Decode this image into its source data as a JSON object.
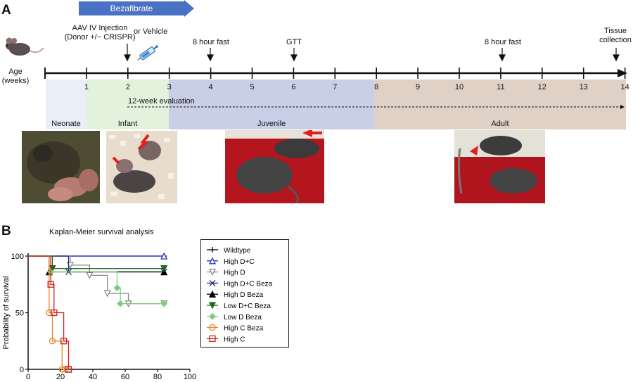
{
  "panel_a": {
    "letter": "A",
    "bezafibrate_label": "Bezafibrate",
    "injection_label": "AAV IV Injection\n(Donor +/− CRISPR)",
    "or_vehicle_label": "or  Vehicle",
    "fast1_label": "8 hour fast",
    "gtt_label": "GTT",
    "fast2_label": "8 hour fast",
    "tissue_label": "Tissue\ncollection",
    "age_label": "Age\n(weeks)",
    "weeks": [
      "1",
      "2",
      "3",
      "4",
      "5",
      "6",
      "7",
      "8",
      "9",
      "10",
      "11",
      "12",
      "13",
      "14"
    ],
    "evaluation_label": "12-week evaluation",
    "stages": [
      "Neonate",
      "Infant",
      "Juvenile",
      "Adult"
    ],
    "colors": {
      "arrow_blue": "#4a72c4",
      "neonate": "#e9eef8",
      "infant": "#e2f2dc",
      "juvenile": "#c9cfe7",
      "adult": "#dfd1c6",
      "red_arrow": "#e02020"
    }
  },
  "panel_b": {
    "letter": "B"
  },
  "chart_data": {
    "type": "line",
    "subtype": "kaplan-meier step",
    "title": "Kaplan-Meier survival analysis",
    "xlabel": "",
    "ylabel": "Probability of survival",
    "xlim": [
      0,
      100
    ],
    "ylim": [
      0,
      100
    ],
    "xticks": [
      0,
      20,
      40,
      60,
      80,
      100
    ],
    "yticks": [
      0,
      50,
      100
    ],
    "legend_position": "right",
    "series": [
      {
        "name": "Wildtype",
        "color": "#000000",
        "marker": "plus",
        "points": [
          [
            0,
            100
          ],
          [
            84,
            100
          ]
        ]
      },
      {
        "name": "High D+C",
        "color": "#2233cc",
        "marker": "triangle-open",
        "points": [
          [
            0,
            100
          ],
          [
            84,
            100
          ]
        ]
      },
      {
        "name": "High D",
        "color": "#888888",
        "marker": "triangle-down-open",
        "points": [
          [
            0,
            100
          ],
          [
            26,
            100
          ],
          [
            26,
            92
          ],
          [
            38,
            92
          ],
          [
            38,
            83
          ],
          [
            49,
            83
          ],
          [
            49,
            67
          ],
          [
            62,
            67
          ],
          [
            62,
            58
          ],
          [
            84,
            58
          ]
        ]
      },
      {
        "name": "High D+C Beza",
        "color": "#1a2a7a",
        "marker": "x",
        "points": [
          [
            0,
            100
          ],
          [
            25,
            100
          ],
          [
            25,
            86
          ],
          [
            84,
            86
          ]
        ]
      },
      {
        "name": "High D Beza",
        "color": "#000000",
        "marker": "triangle",
        "points": [
          [
            0,
            100
          ],
          [
            13,
            100
          ],
          [
            13,
            86
          ],
          [
            84,
            86
          ]
        ]
      },
      {
        "name": "Low D+C Beza",
        "color": "#226622",
        "marker": "triangle-down",
        "points": [
          [
            0,
            100
          ],
          [
            15,
            100
          ],
          [
            15,
            89
          ],
          [
            84,
            89
          ]
        ]
      },
      {
        "name": "Low D Beza",
        "color": "#7fcc7f",
        "marker": "diamond",
        "points": [
          [
            0,
            100
          ],
          [
            14,
            100
          ],
          [
            14,
            86
          ],
          [
            55,
            86
          ],
          [
            55,
            72
          ],
          [
            57,
            72
          ],
          [
            57,
            58
          ],
          [
            84,
            58
          ]
        ]
      },
      {
        "name": "High C Beza",
        "color": "#e08a2a",
        "marker": "circle-open",
        "points": [
          [
            0,
            100
          ],
          [
            13,
            100
          ],
          [
            13,
            50
          ],
          [
            15,
            50
          ],
          [
            15,
            25
          ],
          [
            21,
            25
          ],
          [
            21,
            0
          ],
          [
            23,
            0
          ]
        ]
      },
      {
        "name": "High C",
        "color": "#cc2222",
        "marker": "square-open",
        "points": [
          [
            0,
            100
          ],
          [
            14,
            100
          ],
          [
            14,
            75
          ],
          [
            16,
            75
          ],
          [
            16,
            50
          ],
          [
            22,
            50
          ],
          [
            22,
            25
          ],
          [
            25,
            25
          ],
          [
            25,
            0
          ]
        ]
      }
    ]
  }
}
